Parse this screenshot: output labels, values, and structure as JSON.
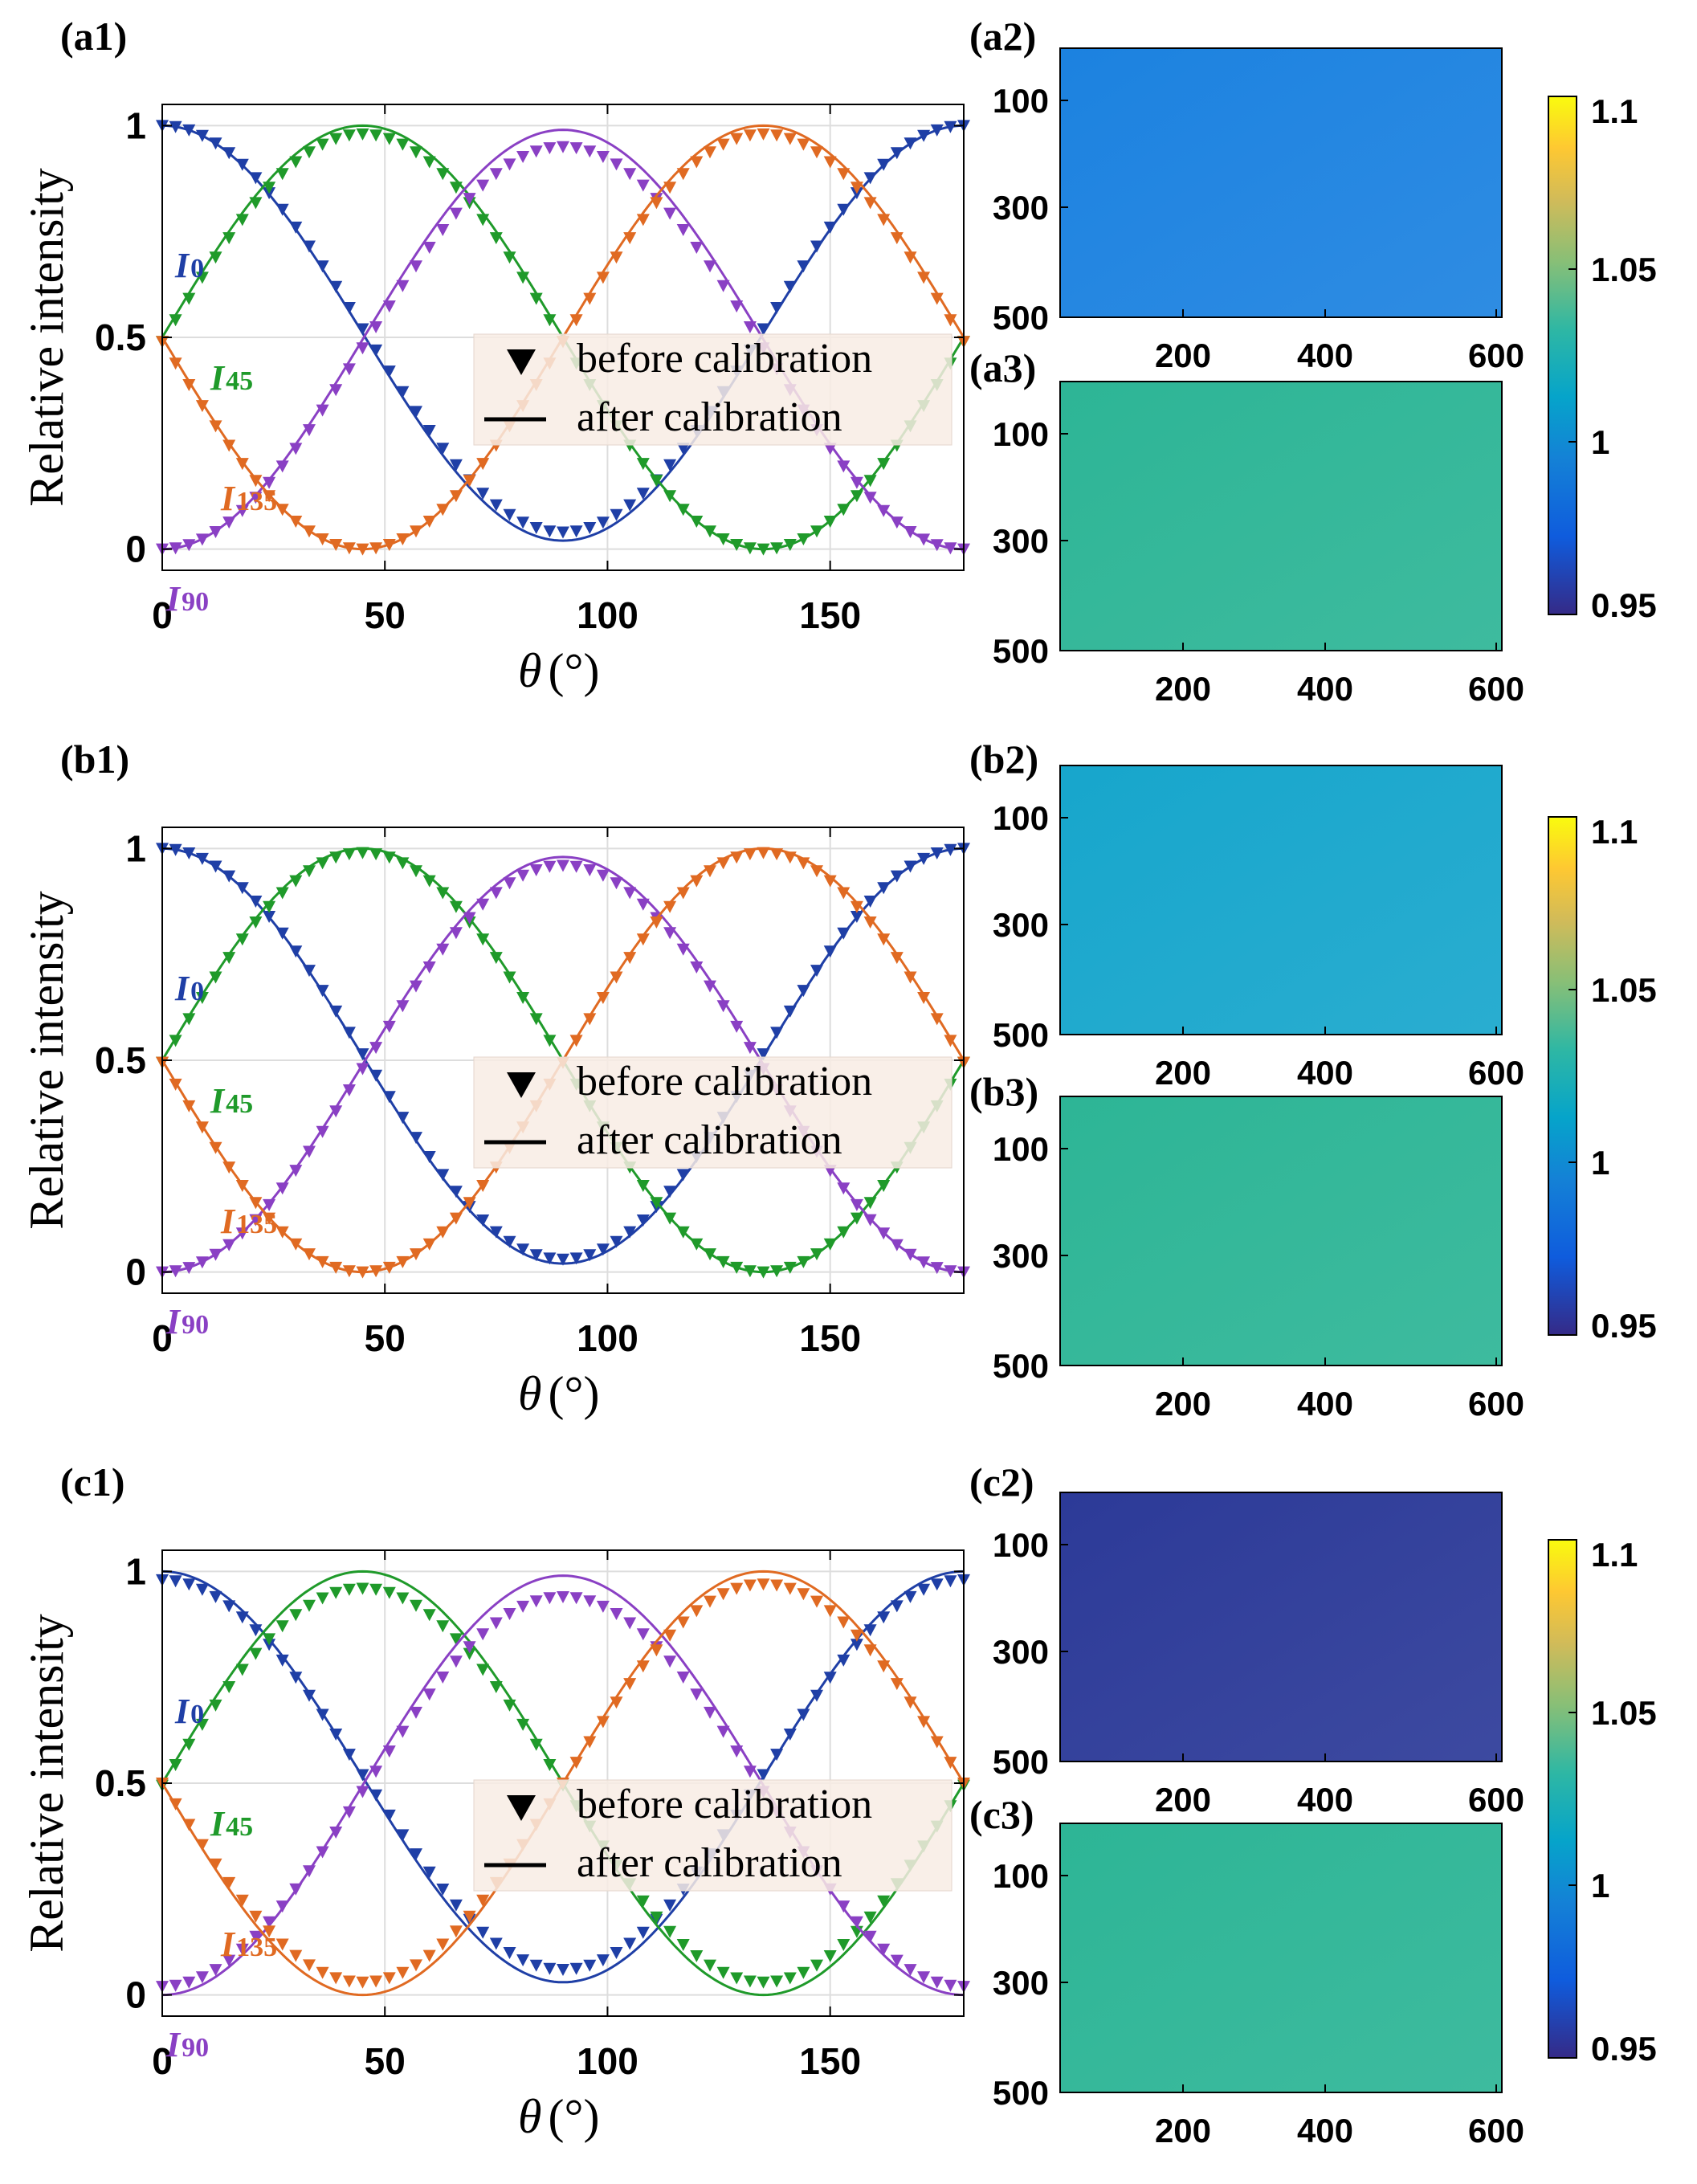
{
  "colors": {
    "I0": "#1f3fa6",
    "I45": "#1f9a2a",
    "I90": "#8a40c4",
    "I135": "#e06a22",
    "grid": "#dddddd",
    "legend_bg": "#f8ece4"
  },
  "chart_data": [
    {
      "type": "line",
      "panel": "(a1)",
      "xlabel_symbol": "θ",
      "xlabel_unit": "(°)",
      "ylabel": "Relative intensity",
      "xlim": [
        0,
        180
      ],
      "ylim": [
        -0.05,
        1.05
      ],
      "xticks": [
        0,
        50,
        100,
        150
      ],
      "yticks": [
        0,
        0.5,
        1
      ],
      "ytick_labels": [
        "0",
        "0.5",
        "1"
      ],
      "legend": [
        "before calibration",
        "after calibration"
      ],
      "series": [
        {
          "name": "I0",
          "label_main": "I",
          "label_sub": "0",
          "phase": 0,
          "before": {
            "min": 0.04,
            "max": 1.0
          },
          "after": {
            "min": 0.02,
            "max": 1.0
          }
        },
        {
          "name": "I45",
          "label_main": "I",
          "label_sub": "45",
          "phase": 45,
          "before": {
            "min": 0.0,
            "max": 0.98
          },
          "after": {
            "min": 0.0,
            "max": 1.0
          }
        },
        {
          "name": "I90",
          "label_main": "I",
          "label_sub": "90",
          "phase": 90,
          "before": {
            "min": 0.0,
            "max": 0.95
          },
          "after": {
            "min": 0.0,
            "max": 0.99
          }
        },
        {
          "name": "I135",
          "label_main": "I",
          "label_sub": "135",
          "phase": 135,
          "before": {
            "min": 0.0,
            "max": 0.98
          },
          "after": {
            "min": 0.0,
            "max": 1.0
          }
        }
      ]
    },
    {
      "type": "line",
      "panel": "(b1)",
      "xlabel_symbol": "θ",
      "xlabel_unit": "(°)",
      "ylabel": "Relative intensity",
      "xlim": [
        0,
        180
      ],
      "ylim": [
        -0.05,
        1.05
      ],
      "xticks": [
        0,
        50,
        100,
        150
      ],
      "yticks": [
        0,
        0.5,
        1
      ],
      "ytick_labels": [
        "0",
        "0.5",
        "1"
      ],
      "legend": [
        "before calibration",
        "after calibration"
      ],
      "series": [
        {
          "name": "I0",
          "label_main": "I",
          "label_sub": "0",
          "phase": 0,
          "before": {
            "min": 0.03,
            "max": 1.0
          },
          "after": {
            "min": 0.02,
            "max": 1.0
          }
        },
        {
          "name": "I45",
          "label_main": "I",
          "label_sub": "45",
          "phase": 45,
          "before": {
            "min": 0.0,
            "max": 0.99
          },
          "after": {
            "min": 0.0,
            "max": 1.0
          }
        },
        {
          "name": "I90",
          "label_main": "I",
          "label_sub": "90",
          "phase": 90,
          "before": {
            "min": 0.0,
            "max": 0.96
          },
          "after": {
            "min": 0.0,
            "max": 0.98
          }
        },
        {
          "name": "I135",
          "label_main": "I",
          "label_sub": "135",
          "phase": 135,
          "before": {
            "min": 0.0,
            "max": 0.99
          },
          "after": {
            "min": 0.0,
            "max": 1.0
          }
        }
      ]
    },
    {
      "type": "line",
      "panel": "(c1)",
      "xlabel_symbol": "θ",
      "xlabel_unit": "(°)",
      "ylabel": "Relative intensity",
      "xlim": [
        0,
        180
      ],
      "ylim": [
        -0.05,
        1.05
      ],
      "xticks": [
        0,
        50,
        100,
        150
      ],
      "yticks": [
        0,
        0.5,
        1
      ],
      "ytick_labels": [
        "0",
        "0.5",
        "1"
      ],
      "legend": [
        "before calibration",
        "after calibration"
      ],
      "series": [
        {
          "name": "I0",
          "label_main": "I",
          "label_sub": "0",
          "phase": 0,
          "before": {
            "min": 0.06,
            "max": 0.98
          },
          "after": {
            "min": 0.03,
            "max": 1.0
          }
        },
        {
          "name": "I45",
          "label_main": "I",
          "label_sub": "45",
          "phase": 45,
          "before": {
            "min": 0.03,
            "max": 0.96
          },
          "after": {
            "min": 0.0,
            "max": 1.0
          }
        },
        {
          "name": "I90",
          "label_main": "I",
          "label_sub": "90",
          "phase": 90,
          "before": {
            "min": 0.02,
            "max": 0.94
          },
          "after": {
            "min": 0.0,
            "max": 0.99
          }
        },
        {
          "name": "I135",
          "label_main": "I",
          "label_sub": "135",
          "phase": 135,
          "before": {
            "min": 0.03,
            "max": 0.97
          },
          "after": {
            "min": 0.0,
            "max": 1.0
          }
        }
      ]
    },
    {
      "type": "heatmap",
      "panels": [
        {
          "panel": "(a2)",
          "base_color": "#1c82e0",
          "group": 0
        },
        {
          "panel": "(a3)",
          "base_color": "#2db596",
          "group": 0
        },
        {
          "panel": "(b2)",
          "base_color": "#17a6cc",
          "group": 1
        },
        {
          "panel": "(b3)",
          "base_color": "#2db596",
          "group": 1
        },
        {
          "panel": "(c2)",
          "base_color": "#2c3a98",
          "group": 2
        },
        {
          "panel": "(c3)",
          "base_color": "#2db596",
          "group": 2
        }
      ],
      "xticks": [
        "200",
        "400",
        "600"
      ],
      "yticks": [
        "100",
        "300",
        "500"
      ],
      "colorbar": {
        "ticks": [
          "1.1",
          "1.05",
          "1",
          "0.95"
        ],
        "range": [
          0.95,
          1.1
        ],
        "colormap": "parula"
      }
    }
  ]
}
